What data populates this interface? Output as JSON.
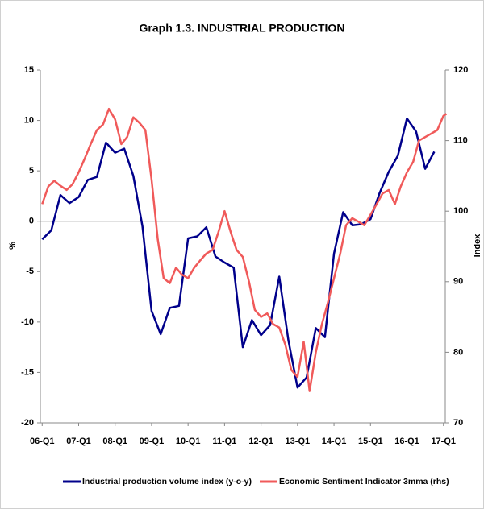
{
  "chart_data": {
    "type": "line",
    "title": "Graph 1.3. INDUSTRIAL PRODUCTION",
    "ylabel": "%",
    "y2label": "Index",
    "xlim": [
      2005.95,
      2017.05
    ],
    "xticks": [
      {
        "value": 2006,
        "label": "06-Q1"
      },
      {
        "value": 2007,
        "label": "07-Q1"
      },
      {
        "value": 2008,
        "label": "08-Q1"
      },
      {
        "value": 2009,
        "label": "09-Q1"
      },
      {
        "value": 2010,
        "label": "10-Q1"
      },
      {
        "value": 2011,
        "label": "11-Q1"
      },
      {
        "value": 2012,
        "label": "12-Q1"
      },
      {
        "value": 2013,
        "label": "13-Q1"
      },
      {
        "value": 2014,
        "label": "14-Q1"
      },
      {
        "value": 2015,
        "label": "15-Q1"
      },
      {
        "value": 2016,
        "label": "16-Q1"
      },
      {
        "value": 2017,
        "label": "17-Q1"
      }
    ],
    "ylim": [
      -20,
      15
    ],
    "yticks": [
      15,
      10,
      5,
      0,
      -5,
      -10,
      -15,
      -20
    ],
    "y2lim": [
      70,
      120
    ],
    "y2ticks": [
      120,
      110,
      100,
      90,
      80,
      70
    ],
    "series": [
      {
        "name": "Industrial production volume index (y-o-y)",
        "color": "#00008b",
        "x": [
          2006,
          2006.25,
          2006.5,
          2006.75,
          2007,
          2007.25,
          2007.5,
          2007.75,
          2008,
          2008.25,
          2008.5,
          2008.75,
          2009,
          2009.25,
          2009.5,
          2009.75,
          2010,
          2010.25,
          2010.5,
          2010.75,
          2011,
          2011.25,
          2011.5,
          2011.75,
          2012,
          2012.25,
          2012.5,
          2012.75,
          2013,
          2013.25,
          2013.5,
          2013.75,
          2014,
          2014.25,
          2014.5,
          2014.75,
          2015,
          2015.25,
          2015.5,
          2015.75,
          2016,
          2016.25,
          2016.5,
          2016.75
        ],
        "values": [
          -1.8,
          -0.9,
          2.6,
          1.8,
          2.4,
          4.1,
          4.4,
          7.8,
          6.8,
          7.2,
          4.5,
          -0.5,
          -8.9,
          -11.2,
          -8.6,
          -8.4,
          -1.7,
          -1.5,
          -0.6,
          -3.5,
          -4.1,
          -4.6,
          -12.5,
          -9.8,
          -11.3,
          -10.3,
          -5.5,
          -11.8,
          -16.5,
          -15.5,
          -10.6,
          -11.5,
          -3.2,
          0.9,
          -0.4,
          -0.3,
          0.2,
          2.8,
          4.9,
          6.5,
          10.2,
          8.9,
          5.2,
          6.9
        ]
      },
      {
        "name": "Economic Sentiment Indicator 3mma (rhs)",
        "color": "#f05a5a",
        "axis": "y2",
        "x": [
          2006,
          2006.17,
          2006.33,
          2006.5,
          2006.67,
          2006.83,
          2007,
          2007.17,
          2007.33,
          2007.5,
          2007.67,
          2007.83,
          2008,
          2008.17,
          2008.33,
          2008.5,
          2008.67,
          2008.83,
          2009,
          2009.17,
          2009.33,
          2009.5,
          2009.67,
          2009.83,
          2010,
          2010.17,
          2010.33,
          2010.5,
          2010.67,
          2010.83,
          2011,
          2011.17,
          2011.33,
          2011.5,
          2011.67,
          2011.83,
          2012,
          2012.17,
          2012.33,
          2012.5,
          2012.67,
          2012.83,
          2013,
          2013.17,
          2013.33,
          2013.5,
          2013.67,
          2013.83,
          2014,
          2014.17,
          2014.33,
          2014.5,
          2014.67,
          2014.83,
          2015,
          2015.17,
          2015.33,
          2015.5,
          2015.67,
          2015.83,
          2016,
          2016.17,
          2016.33,
          2016.5,
          2016.67,
          2016.83,
          2017,
          2017.08
        ],
        "values": [
          101,
          103.5,
          104.3,
          103.6,
          103,
          103.8,
          105.5,
          107.5,
          109.5,
          111.5,
          112.3,
          114.5,
          113,
          109.5,
          110.5,
          113.3,
          112.5,
          111.5,
          104.5,
          96,
          90.5,
          89.8,
          92,
          91,
          90.5,
          92,
          93,
          94,
          94.5,
          97,
          100,
          97,
          94.5,
          93.5,
          90,
          86,
          85,
          85.5,
          84,
          83.5,
          81,
          77.5,
          76.5,
          81.5,
          74.5,
          80,
          84,
          87,
          90.5,
          94,
          98,
          99,
          98.5,
          98,
          99.5,
          101,
          102.5,
          103,
          101,
          103.5,
          105.5,
          107,
          110,
          110.5,
          111,
          111.5,
          113.5,
          113.8
        ]
      }
    ]
  }
}
